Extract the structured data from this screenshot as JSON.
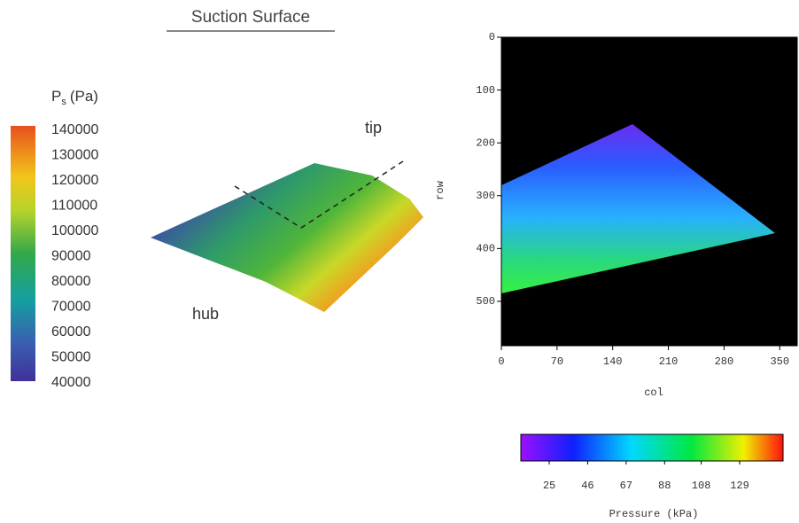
{
  "left": {
    "title": "Suction Surface",
    "colorbar": {
      "label": "P",
      "label_subscript": "s",
      "label_unit": "(Pa)",
      "lim": [
        40000,
        140000
      ],
      "ticks": [
        140000,
        130000,
        120000,
        110000,
        100000,
        90000,
        80000,
        70000,
        60000,
        50000,
        40000
      ]
    },
    "annotations": {
      "tip": "tip",
      "hub": "hub"
    }
  },
  "right": {
    "xlabel": "col",
    "ylabel": "row",
    "xlim": [
      0,
      372
    ],
    "xticks": [
      0,
      70,
      140,
      210,
      280,
      350
    ],
    "ylim": [
      0,
      584
    ],
    "yticks": [
      0,
      100,
      200,
      300,
      400,
      500
    ],
    "colorbar": {
      "label": "Pressure (kPa)",
      "lim": [
        9.5,
        152.7
      ],
      "ticks": [
        25,
        46,
        67,
        88,
        108,
        129
      ]
    }
  }
}
